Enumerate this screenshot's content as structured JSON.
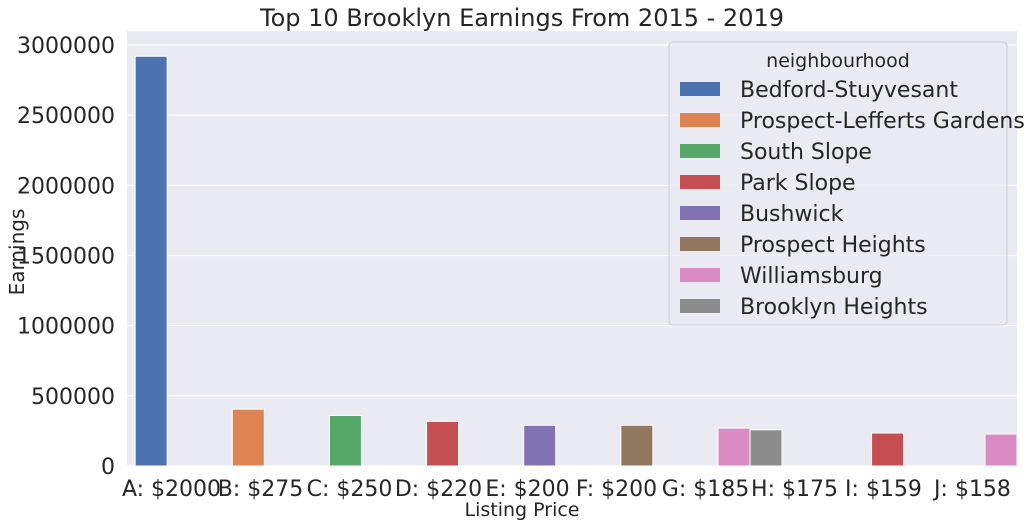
{
  "chart_data": {
    "type": "bar",
    "title": "Top 10 Brooklyn Earnings From 2015 - 2019",
    "xlabel": "Listing Price",
    "ylabel": "Earnings",
    "ylim": [
      0,
      3100000
    ],
    "yticks": [
      0,
      500000,
      1000000,
      1500000,
      2000000,
      2500000,
      3000000
    ],
    "ytick_labels": [
      "0",
      "500000",
      "1000000",
      "1500000",
      "2000000",
      "2500000",
      "3000000"
    ],
    "grid": true,
    "legend_position": "top-right",
    "legend_title": "neighbourhood",
    "categories": [
      "A: $2000",
      "B: $275",
      "C: $250",
      "D: $220",
      "E: $200",
      "F: $200",
      "G: $185",
      "H: $175",
      "I: $159",
      "J: $158"
    ],
    "series": [
      {
        "name": "Bedford-Stuyvesant",
        "color": "#4c72b0",
        "values": [
          2920000,
          null,
          null,
          null,
          null,
          null,
          null,
          null,
          null,
          null
        ]
      },
      {
        "name": "Prospect-Lefferts Gardens",
        "color": "#dd8452",
        "values": [
          null,
          405000,
          null,
          null,
          null,
          null,
          null,
          null,
          null,
          null
        ]
      },
      {
        "name": "South Slope",
        "color": "#55a868",
        "values": [
          null,
          null,
          360000,
          null,
          null,
          null,
          null,
          null,
          null,
          null
        ]
      },
      {
        "name": "Park Slope",
        "color": "#c44e52",
        "values": [
          null,
          null,
          null,
          318000,
          null,
          null,
          null,
          null,
          235000,
          null
        ]
      },
      {
        "name": "Bushwick",
        "color": "#8172b3",
        "values": [
          null,
          null,
          null,
          null,
          290000,
          null,
          null,
          null,
          null,
          null
        ]
      },
      {
        "name": "Prospect Heights",
        "color": "#937860",
        "values": [
          null,
          null,
          null,
          null,
          null,
          290000,
          null,
          null,
          null,
          null
        ]
      },
      {
        "name": "Williamsburg",
        "color": "#da8bc3",
        "values": [
          null,
          null,
          null,
          null,
          null,
          null,
          270000,
          null,
          null,
          228000
        ]
      },
      {
        "name": "Brooklyn Heights",
        "color": "#8c8c8c",
        "values": [
          null,
          null,
          null,
          null,
          null,
          null,
          null,
          258000,
          null,
          null
        ]
      }
    ]
  }
}
